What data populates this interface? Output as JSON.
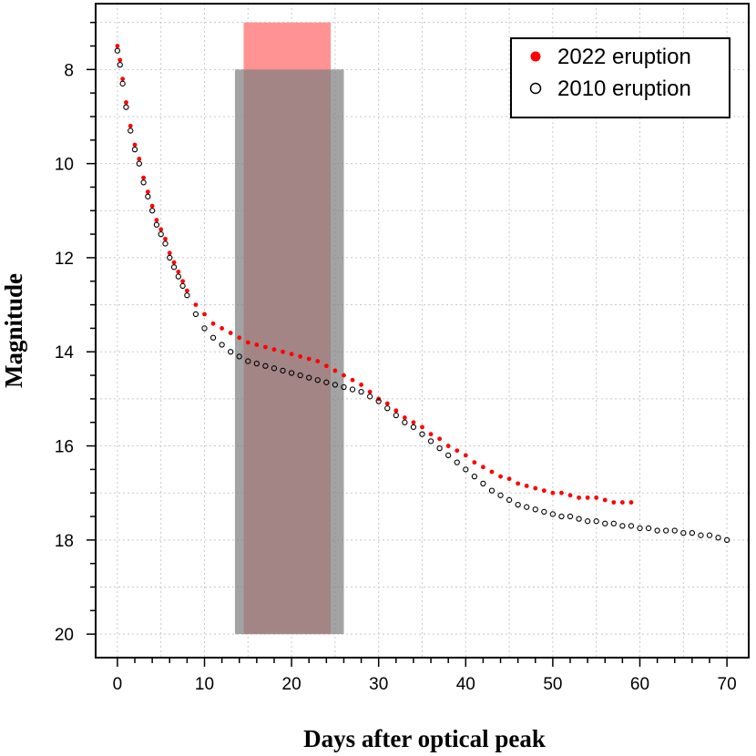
{
  "chart_data": {
    "type": "scatter",
    "xlabel": "Days after optical peak",
    "ylabel": "Magnitude",
    "xlim": [
      -2.5,
      72.5
    ],
    "ylim": [
      20.5,
      6.6
    ],
    "y_inverted": true,
    "x_ticks": [
      0,
      10,
      20,
      30,
      40,
      50,
      60,
      70
    ],
    "x_minor_step": 2,
    "y_ticks": [
      8,
      10,
      12,
      14,
      16,
      18,
      20
    ],
    "y_minor_step": 0.5,
    "grid": true,
    "legend_position": "top-right",
    "shaded_regions": [
      {
        "series": "2022 eruption",
        "x_start": 14.5,
        "x_end": 24.5,
        "y_top": 7.0,
        "y_bottom": 20.0,
        "color": "#ff8c8c"
      },
      {
        "series": "2010 eruption",
        "x_start": 13.5,
        "x_end": 26.0,
        "y_top": 8.0,
        "y_bottom": 20.0,
        "color": "#7f7f7f"
      }
    ],
    "series": [
      {
        "name": "2022 eruption",
        "marker": "filled-circle",
        "color": "#ff0000",
        "x": [
          0.0,
          0.3,
          0.6,
          1.0,
          1.5,
          2.0,
          2.5,
          3.0,
          3.5,
          4.0,
          4.5,
          5.0,
          5.5,
          6.0,
          6.5,
          7.0,
          7.5,
          8.0,
          9.0,
          10.0,
          11.0,
          12.0,
          13.0,
          14.0,
          15.0,
          16.0,
          17.0,
          18.0,
          19.0,
          20.0,
          21.0,
          22.0,
          23.0,
          24.0,
          25.0,
          26.0,
          27.0,
          28.0,
          29.0,
          30.0,
          31.0,
          32.0,
          33.0,
          34.0,
          35.0,
          36.0,
          37.0,
          38.0,
          39.0,
          40.0,
          41.0,
          42.0,
          43.0,
          44.0,
          45.0,
          46.0,
          47.0,
          48.0,
          49.0,
          50.0,
          51.0,
          52.0,
          53.0,
          54.0,
          55.0,
          56.0,
          57.0,
          58.0,
          59.0
        ],
        "y": [
          7.5,
          7.8,
          8.2,
          8.7,
          9.2,
          9.6,
          9.9,
          10.3,
          10.6,
          10.9,
          11.2,
          11.4,
          11.6,
          11.9,
          12.1,
          12.3,
          12.5,
          12.7,
          13.0,
          13.2,
          13.4,
          13.5,
          13.6,
          13.7,
          13.8,
          13.85,
          13.9,
          13.95,
          14.0,
          14.05,
          14.1,
          14.15,
          14.2,
          14.3,
          14.4,
          14.5,
          14.6,
          14.7,
          14.85,
          15.0,
          15.1,
          15.25,
          15.4,
          15.5,
          15.6,
          15.75,
          15.85,
          16.0,
          16.1,
          16.2,
          16.35,
          16.45,
          16.55,
          16.65,
          16.7,
          16.8,
          16.85,
          16.9,
          16.95,
          17.0,
          17.0,
          17.05,
          17.1,
          17.1,
          17.1,
          17.15,
          17.2,
          17.2,
          17.2
        ]
      },
      {
        "name": "2010 eruption",
        "marker": "open-circle",
        "color": "#000000",
        "x": [
          0.0,
          0.3,
          0.6,
          1.0,
          1.5,
          2.0,
          2.5,
          3.0,
          3.5,
          4.0,
          4.5,
          5.0,
          5.5,
          6.0,
          6.5,
          7.0,
          7.5,
          8.0,
          9.0,
          10.0,
          11.0,
          12.0,
          13.0,
          14.0,
          15.0,
          16.0,
          17.0,
          18.0,
          19.0,
          20.0,
          21.0,
          22.0,
          23.0,
          24.0,
          25.0,
          26.0,
          27.0,
          28.0,
          29.0,
          30.0,
          31.0,
          32.0,
          33.0,
          34.0,
          35.0,
          36.0,
          37.0,
          38.0,
          39.0,
          40.0,
          41.0,
          42.0,
          43.0,
          44.0,
          45.0,
          46.0,
          47.0,
          48.0,
          49.0,
          50.0,
          51.0,
          52.0,
          53.0,
          54.0,
          55.0,
          56.0,
          57.0,
          58.0,
          59.0,
          60.0,
          61.0,
          62.0,
          63.0,
          64.0,
          65.0,
          66.0,
          67.0,
          68.0,
          69.0,
          70.0
        ],
        "y": [
          7.6,
          7.9,
          8.3,
          8.8,
          9.3,
          9.7,
          10.0,
          10.4,
          10.7,
          11.0,
          11.3,
          11.5,
          11.7,
          12.0,
          12.2,
          12.4,
          12.6,
          12.8,
          13.2,
          13.5,
          13.7,
          13.85,
          14.0,
          14.1,
          14.2,
          14.25,
          14.3,
          14.35,
          14.4,
          14.45,
          14.5,
          14.55,
          14.6,
          14.65,
          14.7,
          14.75,
          14.8,
          14.85,
          14.95,
          15.05,
          15.2,
          15.35,
          15.5,
          15.6,
          15.75,
          15.9,
          16.05,
          16.2,
          16.35,
          16.5,
          16.65,
          16.8,
          16.95,
          17.05,
          17.15,
          17.25,
          17.3,
          17.35,
          17.4,
          17.45,
          17.5,
          17.5,
          17.55,
          17.6,
          17.6,
          17.65,
          17.65,
          17.7,
          17.7,
          17.75,
          17.75,
          17.8,
          17.8,
          17.8,
          17.85,
          17.85,
          17.9,
          17.9,
          17.95,
          18.0
        ]
      }
    ]
  }
}
